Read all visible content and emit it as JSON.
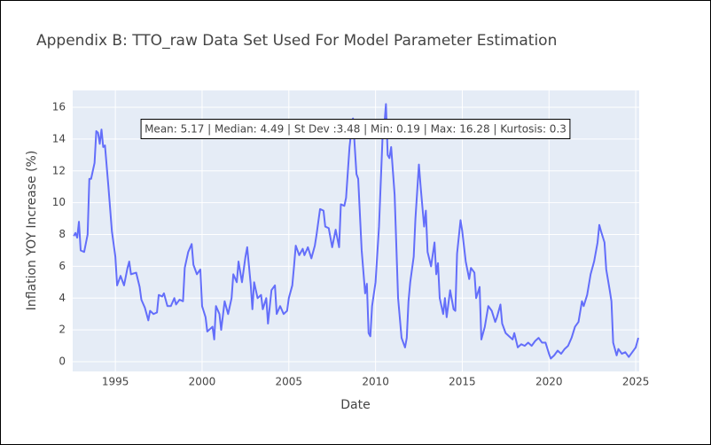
{
  "chart_data": {
    "type": "line",
    "title": "Appendix B: TTO_raw Data Set Used For Model Parameter Estimation",
    "x_label": "Date",
    "y_label": "Inflation YOY Increase (%)",
    "annotation": "Mean: 5.17 | Median: 4.49 | St Dev :3.48 | Min: 0.19 | Max: 16.28 | Kurtosis: 0.3",
    "xlim": [
      1992.54,
      2025.2
    ],
    "xticks": [
      1995,
      2000,
      2005,
      2010,
      2015,
      2020,
      2025
    ],
    "ylim": [
      -0.61,
      17.06
    ],
    "yticks": [
      0,
      2,
      4,
      6,
      8,
      10,
      12,
      14,
      16
    ],
    "grid": true,
    "x": [
      1992.6,
      1992.7,
      1992.8,
      1992.9,
      1993.0,
      1993.2,
      1993.4,
      1993.5,
      1993.6,
      1993.8,
      1993.9,
      1994.0,
      1994.1,
      1994.2,
      1994.3,
      1994.4,
      1994.6,
      1994.8,
      1995.0,
      1995.1,
      1995.3,
      1995.5,
      1995.7,
      1995.8,
      1995.9,
      1996.2,
      1996.4,
      1996.5,
      1996.7,
      1996.9,
      1997.0,
      1997.2,
      1997.4,
      1997.5,
      1997.7,
      1997.8,
      1998.0,
      1998.2,
      1998.4,
      1998.5,
      1998.7,
      1998.9,
      1999.0,
      1999.2,
      1999.4,
      1999.5,
      1999.7,
      1999.9,
      2000.0,
      2000.2,
      2000.3,
      2000.4,
      2000.6,
      2000.7,
      2000.8,
      2001.0,
      2001.1,
      2001.3,
      2001.5,
      2001.7,
      2001.8,
      2002.0,
      2002.1,
      2002.3,
      2002.5,
      2002.6,
      2002.8,
      2002.9,
      2003.0,
      2003.2,
      2003.4,
      2003.5,
      2003.7,
      2003.8,
      2004.0,
      2004.2,
      2004.3,
      2004.5,
      2004.7,
      2004.9,
      2005.0,
      2005.2,
      2005.3,
      2005.4,
      2005.6,
      2005.8,
      2005.9,
      2006.1,
      2006.3,
      2006.5,
      2006.6,
      2006.8,
      2007.0,
      2007.1,
      2007.3,
      2007.5,
      2007.7,
      2007.9,
      2008.0,
      2008.2,
      2008.3,
      2008.5,
      2008.6,
      2008.7,
      2008.9,
      2009.0,
      2009.2,
      2009.4,
      2009.5,
      2009.6,
      2009.7,
      2009.8,
      2010.0,
      2010.2,
      2010.4,
      2010.5,
      2010.6,
      2010.7,
      2010.8,
      2010.9,
      2011.0,
      2011.1,
      2011.3,
      2011.5,
      2011.6,
      2011.7,
      2011.8,
      2011.9,
      2012.0,
      2012.2,
      2012.3,
      2012.5,
      2012.6,
      2012.8,
      2012.9,
      2013.0,
      2013.2,
      2013.4,
      2013.5,
      2013.6,
      2013.7,
      2013.9,
      2014.0,
      2014.1,
      2014.3,
      2014.5,
      2014.6,
      2014.7,
      2014.9,
      2015.0,
      2015.2,
      2015.4,
      2015.5,
      2015.7,
      2015.8,
      2016.0,
      2016.1,
      2016.3,
      2016.5,
      2016.7,
      2016.9,
      2017.0,
      2017.2,
      2017.3,
      2017.5,
      2017.7,
      2017.9,
      2018.0,
      2018.2,
      2018.4,
      2018.6,
      2018.8,
      2019.0,
      2019.2,
      2019.4,
      2019.6,
      2019.8,
      2020.0,
      2020.1,
      2020.3,
      2020.5,
      2020.7,
      2020.9,
      2021.1,
      2021.3,
      2021.5,
      2021.7,
      2021.9,
      2022.0,
      2022.2,
      2022.4,
      2022.6,
      2022.8,
      2022.9,
      2023.0,
      2023.2,
      2023.3,
      2023.5,
      2023.6,
      2023.7,
      2023.9,
      2024.0,
      2024.2,
      2024.4,
      2024.6,
      2024.8,
      2025.0,
      2025.15
    ],
    "series": [
      {
        "color": "#636efa",
        "values": [
          7.9,
          8.1,
          7.8,
          8.8,
          7.0,
          6.9,
          8.0,
          11.5,
          11.5,
          12.5,
          14.5,
          14.4,
          13.7,
          14.6,
          13.5,
          13.6,
          11.0,
          8.2,
          6.6,
          4.8,
          5.4,
          4.8,
          5.9,
          6.3,
          5.5,
          5.6,
          4.7,
          3.9,
          3.4,
          2.6,
          3.2,
          3.0,
          3.1,
          4.2,
          4.1,
          4.3,
          3.5,
          3.5,
          4.0,
          3.6,
          3.9,
          3.8,
          5.9,
          6.9,
          7.4,
          6.1,
          5.5,
          5.8,
          3.5,
          2.8,
          1.9,
          2.0,
          2.2,
          1.4,
          3.5,
          3.0,
          2.0,
          3.8,
          3.0,
          4.0,
          5.5,
          5.0,
          6.3,
          5.0,
          6.6,
          7.2,
          4.9,
          3.3,
          5.0,
          4.0,
          4.2,
          3.3,
          4.0,
          2.4,
          4.5,
          4.8,
          3.0,
          3.5,
          3.0,
          3.2,
          4.0,
          4.8,
          6.0,
          7.3,
          6.7,
          7.1,
          6.7,
          7.2,
          6.5,
          7.3,
          8.0,
          9.6,
          9.5,
          8.5,
          8.4,
          7.2,
          8.3,
          7.2,
          9.9,
          9.8,
          10.3,
          13.5,
          14.5,
          15.3,
          11.8,
          11.5,
          7.0,
          4.3,
          4.9,
          1.8,
          1.6,
          3.5,
          5.0,
          8.5,
          14.0,
          14.8,
          16.2,
          13.0,
          12.8,
          13.5,
          12.0,
          10.5,
          4.0,
          1.5,
          1.2,
          0.9,
          1.5,
          3.8,
          5.0,
          6.6,
          9.0,
          12.4,
          11.0,
          8.5,
          9.5,
          6.9,
          6.0,
          7.5,
          5.5,
          6.2,
          4.0,
          3.0,
          4.0,
          2.8,
          4.5,
          3.3,
          3.2,
          6.8,
          8.9,
          8.2,
          6.3,
          5.2,
          5.9,
          5.6,
          4.0,
          4.7,
          1.4,
          2.2,
          3.5,
          3.2,
          2.5,
          2.8,
          3.6,
          2.4,
          1.8,
          1.6,
          1.4,
          1.8,
          0.9,
          1.1,
          1.0,
          1.2,
          1.0,
          1.3,
          1.5,
          1.2,
          1.2,
          0.5,
          0.2,
          0.4,
          0.7,
          0.5,
          0.8,
          1.0,
          1.5,
          2.2,
          2.5,
          3.8,
          3.5,
          4.2,
          5.5,
          6.3,
          7.5,
          8.6,
          8.2,
          7.5,
          5.8,
          4.5,
          3.8,
          1.2,
          0.4,
          0.8,
          0.5,
          0.6,
          0.3,
          0.6,
          0.9,
          1.5
        ]
      }
    ]
  }
}
